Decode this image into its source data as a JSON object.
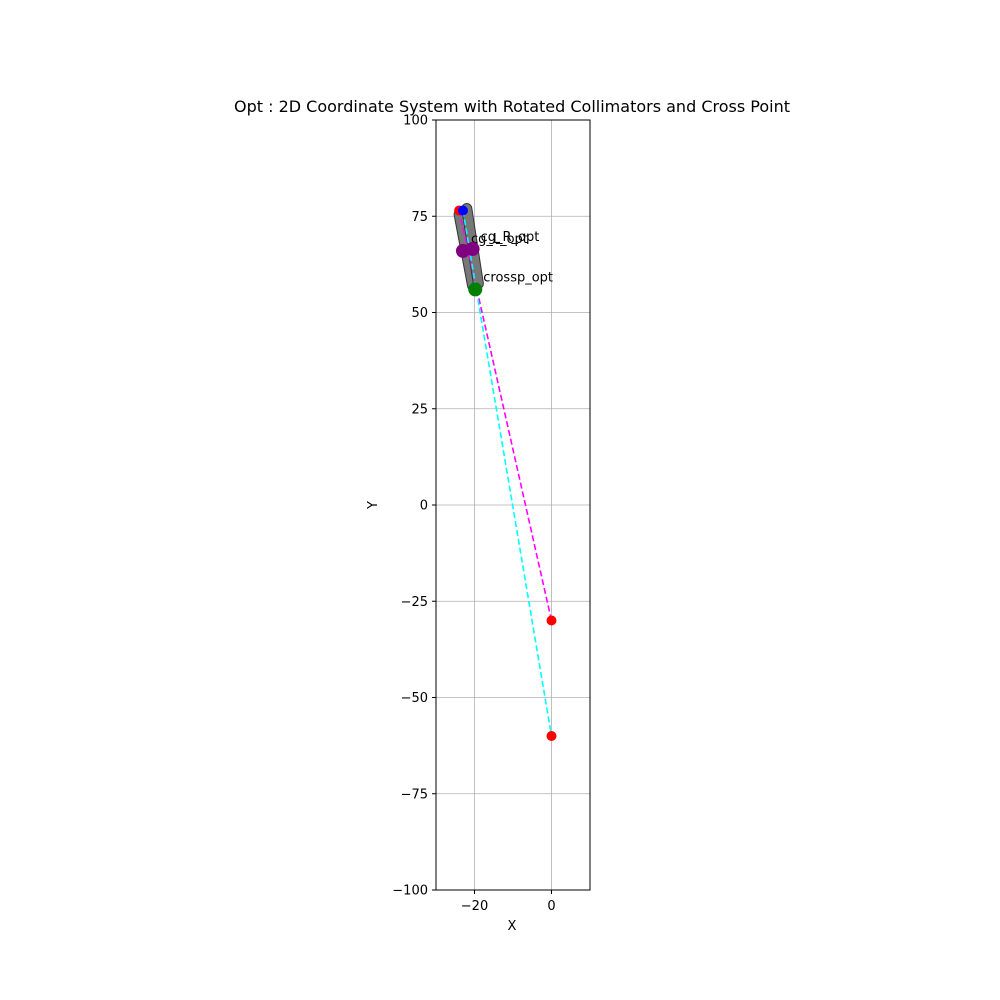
{
  "chart_data": {
    "type": "scatter",
    "title": "Opt : 2D Coordinate System with Rotated Collimators and Cross Point",
    "xlabel": "X",
    "ylabel": "Y",
    "xlim": [
      -30,
      10
    ],
    "ylim": [
      -100,
      100
    ],
    "grid": true,
    "x_ticks": [
      -20,
      0
    ],
    "x_tick_labels": [
      "−20",
      "0"
    ],
    "y_ticks": [
      -100,
      -75,
      -50,
      -25,
      0,
      25,
      50,
      75,
      100
    ],
    "y_tick_labels": [
      "−100",
      "−75",
      "−50",
      "−25",
      "0",
      "25",
      "50",
      "75",
      "100"
    ],
    "collimators": [
      {
        "from": [
          -24.0,
          75.5
        ],
        "to": [
          -20.5,
          57.0
        ],
        "color": "#808080"
      },
      {
        "from": [
          -22.0,
          77.0
        ],
        "to": [
          -19.0,
          57.5
        ],
        "color": "#808080"
      }
    ],
    "lines": [
      {
        "from": [
          -24.0,
          76.5
        ],
        "to": [
          0,
          -30
        ],
        "color": "#ff00ff",
        "style": "dashed"
      },
      {
        "from": [
          -23.0,
          76.5
        ],
        "to": [
          0,
          -60
        ],
        "color": "#00ffff",
        "style": "dashed"
      }
    ],
    "points": [
      {
        "x": -24.0,
        "y": 76.5,
        "color": "#ff0000",
        "size": "small",
        "label": ""
      },
      {
        "x": -23.0,
        "y": 76.5,
        "color": "#0000ff",
        "size": "small",
        "label": ""
      },
      {
        "x": 0,
        "y": -30,
        "color": "#ff0000",
        "size": "small",
        "label": ""
      },
      {
        "x": 0,
        "y": -60,
        "color": "#ff0000",
        "size": "small",
        "label": ""
      },
      {
        "x": -23.0,
        "y": 66.0,
        "color": "#800080",
        "size": "large",
        "label": "cg_L_opt"
      },
      {
        "x": -20.5,
        "y": 66.5,
        "color": "#800080",
        "size": "large",
        "label": "cg_R_opt"
      },
      {
        "x": -19.8,
        "y": 56.0,
        "color": "#008000",
        "size": "large",
        "label": "crossp_opt"
      }
    ]
  }
}
